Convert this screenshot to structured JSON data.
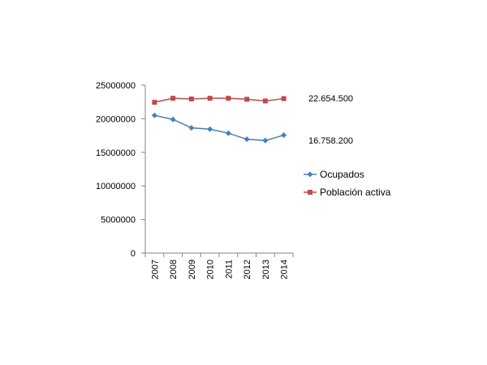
{
  "chart_data": {
    "type": "line",
    "categories": [
      "2007",
      "2008",
      "2009",
      "2010",
      "2011",
      "2012",
      "2013",
      "2014"
    ],
    "series": [
      {
        "name": "Ocupados",
        "color": "#4a7ebb",
        "marker": "diamond",
        "values": [
          20500000,
          19900000,
          18650000,
          18450000,
          17850000,
          16950000,
          16750000,
          17550000
        ]
      },
      {
        "name": "Población activa",
        "color": "#be4b48",
        "marker": "square",
        "values": [
          22450000,
          23050000,
          22950000,
          23050000,
          23050000,
          22900000,
          22650000,
          23000000
        ]
      }
    ],
    "ylim": [
      0,
      25000000
    ],
    "yticks": [
      "0",
      "5000000",
      "10000000",
      "15000000",
      "20000000",
      "25000000"
    ],
    "grid": false,
    "legend_position": "right",
    "annotations": [
      "22.654.500",
      "16.758.200"
    ]
  }
}
